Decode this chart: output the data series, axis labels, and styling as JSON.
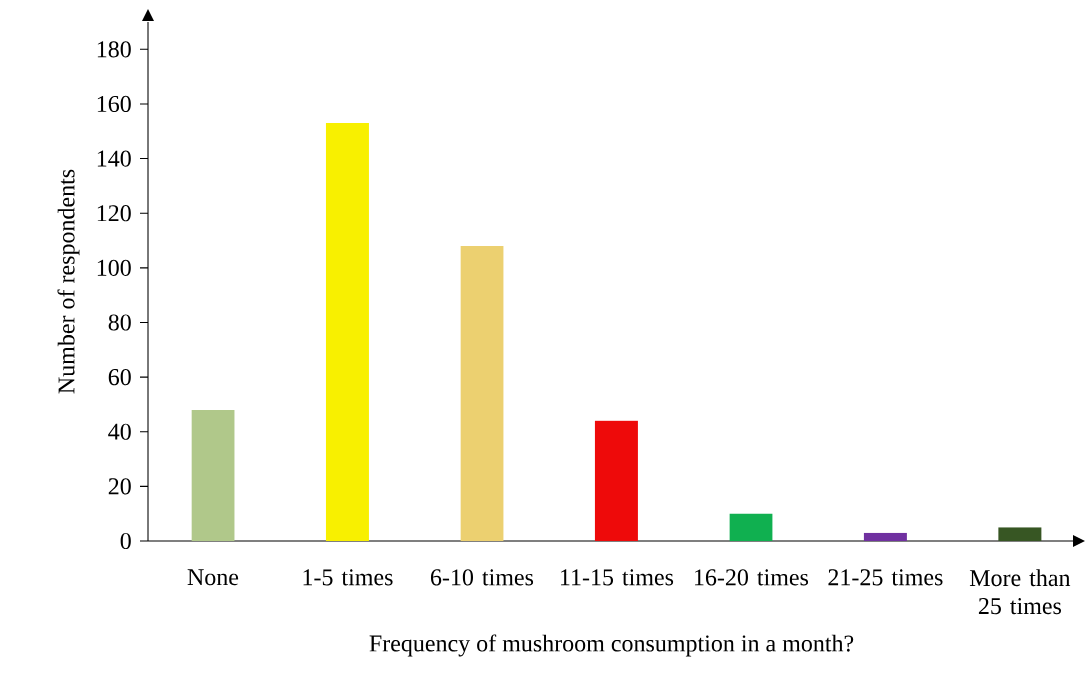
{
  "chart_data": {
    "type": "bar",
    "xlabel": "Frequency of mushroom consumption in a month?",
    "ylabel": "Number of respondents",
    "categories": [
      "None",
      "1-5 times",
      "6-10 times",
      "11-15 times",
      "16-20 times",
      "21-25 times",
      "More than 25 times"
    ],
    "values": [
      48,
      153,
      108,
      44,
      10,
      3,
      5
    ],
    "colors": [
      "#b0c88a",
      "#f8f000",
      "#ecd070",
      "#ee0a0a",
      "#10b050",
      "#7030a0",
      "#375623"
    ],
    "ylim": [
      0,
      190
    ],
    "yticks": [
      0,
      20,
      40,
      60,
      80,
      100,
      120,
      140,
      160,
      180
    ],
    "grid": false
  }
}
